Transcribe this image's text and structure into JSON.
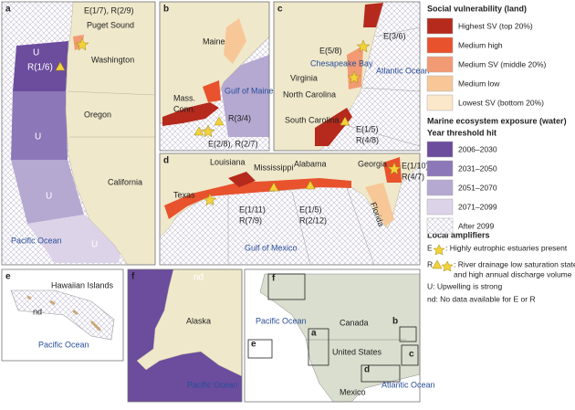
{
  "panels": {
    "a": {
      "label": "a",
      "labels": [
        "E(1/7), R(2/9)",
        "Puget Sound",
        "Washington",
        "U",
        "R(1/6)",
        "Oregon",
        "U",
        "California",
        "U",
        "U",
        "Pacific Ocean"
      ]
    },
    "b": {
      "label": "b",
      "labels": [
        "Maine",
        "Gulf of Maine",
        "R(3/4)",
        "Mass.",
        "Conn.",
        "E(2/8), R(2/7)"
      ]
    },
    "c": {
      "label": "c",
      "labels": [
        "E(3/6)",
        "E(5/8)",
        "Chesapeake Bay",
        "Virginia",
        "Atlantic Ocean",
        "North Carolina",
        "South Carolina",
        "E(1/5)",
        "R(4/8)"
      ]
    },
    "d": {
      "label": "d",
      "labels": [
        "Louisiana",
        "Mississippi",
        "Alabama",
        "Georgia",
        "E(1/10)",
        "R(4/7)",
        "Texas",
        "Florida",
        "E(1/11)",
        "R(7/9)",
        "E(1/5)",
        "R(2/12)",
        "Gulf of Mexico"
      ]
    },
    "e": {
      "label": "e",
      "labels": [
        "Hawaiian Islands",
        "nd",
        "Pacific Ocean"
      ]
    },
    "f": {
      "label": "f",
      "labels": [
        "nd",
        "Alaska",
        "Pacific Ocean"
      ]
    },
    "inset": {
      "labels": [
        "f",
        "a",
        "b",
        "c",
        "d",
        "e",
        "Pacific Ocean",
        "Canada",
        "United States",
        "Mexico",
        "Atlantic Ocean"
      ]
    }
  },
  "legend": {
    "land_title": "Social vulnerability (land)",
    "land": [
      {
        "label": "Highest SV (top 20%)",
        "color": "#b52a1c"
      },
      {
        "label": "Medium high",
        "color": "#e8522c"
      },
      {
        "label": "Medium SV (middle 20%)",
        "color": "#f29a73"
      },
      {
        "label": "Medium low",
        "color": "#f7c797"
      },
      {
        "label": "Lowest SV (bottom 20%)",
        "color": "#fbe7c9"
      }
    ],
    "water_title": "Marine ecosystem exposure (water)",
    "water_subtitle": "Year threshold hit",
    "water": [
      {
        "label": "2006–2030",
        "color": "#6b4c9d"
      },
      {
        "label": "2031–2050",
        "color": "#8c77b8"
      },
      {
        "label": "2051–2070",
        "color": "#b5a8d1"
      },
      {
        "label": "2071–2099",
        "color": "#dcd3e8"
      },
      {
        "label": "After 2099"
      }
    ],
    "amp_title": "Local amplifiers",
    "amps": [
      "E",
      ": Highly eutrophic estuaries present",
      "R",
      ": River drainage low saturation state",
      "and high annual discharge volume",
      "U: Upwelling is strong",
      "nd: No data available for E or R"
    ]
  }
}
